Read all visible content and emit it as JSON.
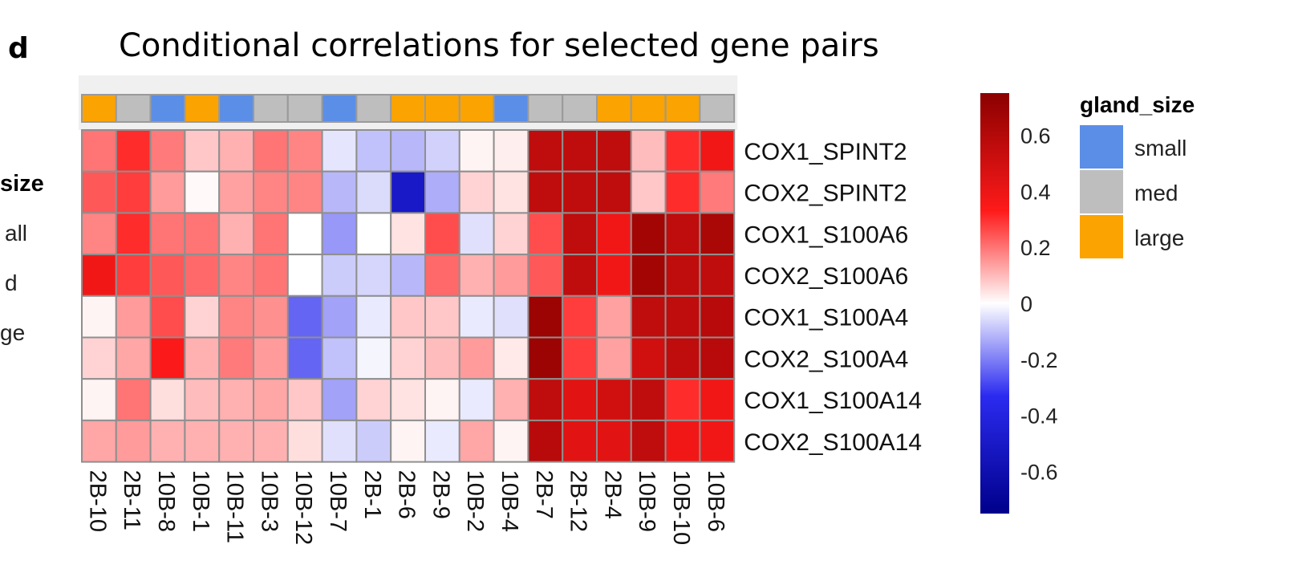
{
  "panel_label": "d",
  "chart_data": {
    "type": "heatmap",
    "title": "Conditional correlations for selected gene pairs",
    "columns": [
      "2B-10",
      "2B-11",
      "10B-8",
      "10B-1",
      "10B-11",
      "10B-3",
      "10B-12",
      "10B-7",
      "2B-1",
      "2B-6",
      "2B-9",
      "10B-2",
      "10B-4",
      "2B-7",
      "2B-12",
      "2B-4",
      "10B-9",
      "10B-10",
      "10B-6"
    ],
    "rows": [
      "COX1_SPINT2",
      "COX2_SPINT2",
      "COX1_S100A6",
      "COX2_S100A6",
      "COX1_S100A4",
      "COX2_S100A4",
      "COX1_S100A14",
      "COX2_S100A14"
    ],
    "values": [
      [
        0.25,
        0.38,
        0.24,
        0.1,
        0.14,
        0.25,
        0.22,
        -0.05,
        -0.12,
        -0.14,
        -0.09,
        0.02,
        0.03,
        0.6,
        0.6,
        0.6,
        0.12,
        0.38,
        0.45
      ],
      [
        0.3,
        0.35,
        0.18,
        0.01,
        0.17,
        0.22,
        0.22,
        -0.14,
        -0.07,
        -0.55,
        -0.16,
        0.08,
        0.05,
        0.6,
        0.6,
        0.6,
        0.1,
        0.38,
        0.24
      ],
      [
        0.22,
        0.38,
        0.25,
        0.25,
        0.14,
        0.25,
        0.0,
        -0.2,
        0.0,
        0.05,
        0.32,
        -0.06,
        0.08,
        0.32,
        0.6,
        0.45,
        0.68,
        0.6,
        0.66
      ],
      [
        0.45,
        0.35,
        0.3,
        0.27,
        0.22,
        0.25,
        0.0,
        -0.1,
        -0.08,
        -0.14,
        0.27,
        0.14,
        0.18,
        0.3,
        0.6,
        0.45,
        0.68,
        0.6,
        0.6
      ],
      [
        0.02,
        0.18,
        0.32,
        0.08,
        0.22,
        0.2,
        -0.3,
        -0.18,
        -0.04,
        0.1,
        0.1,
        -0.04,
        -0.06,
        0.7,
        0.35,
        0.17,
        0.6,
        0.6,
        0.62
      ],
      [
        0.08,
        0.16,
        0.42,
        0.14,
        0.24,
        0.18,
        -0.3,
        -0.12,
        -0.02,
        0.08,
        0.12,
        0.18,
        0.04,
        0.7,
        0.35,
        0.17,
        0.55,
        0.6,
        0.62
      ],
      [
        0.02,
        0.25,
        0.06,
        0.12,
        0.14,
        0.16,
        0.1,
        -0.18,
        0.08,
        0.05,
        0.02,
        -0.04,
        0.14,
        0.6,
        0.5,
        0.55,
        0.6,
        0.38,
        0.45
      ],
      [
        0.16,
        0.18,
        0.14,
        0.14,
        0.14,
        0.14,
        0.06,
        -0.06,
        -0.1,
        0.02,
        -0.04,
        0.16,
        0.02,
        0.62,
        0.5,
        0.5,
        0.6,
        0.45,
        0.45
      ]
    ],
    "column_annotation": {
      "name": "gland_size",
      "values": [
        "large",
        "med",
        "small",
        "large",
        "small",
        "med",
        "med",
        "small",
        "med",
        "large",
        "large",
        "large",
        "small",
        "med",
        "med",
        "large",
        "large",
        "large",
        "med"
      ]
    },
    "legend": {
      "title": "gland_size",
      "items": [
        {
          "label": "small",
          "color": "#5b8ee6"
        },
        {
          "label": "med",
          "color": "#bebebe"
        },
        {
          "label": "large",
          "color": "#fba300"
        }
      ]
    },
    "colorbar": {
      "range": [
        -0.75,
        0.75
      ],
      "ticks": [
        0.6,
        0.4,
        0.2,
        0,
        -0.2,
        -0.4,
        -0.6
      ],
      "tick_labels": [
        "0.6",
        "0.4",
        "0.2",
        "0",
        "-0.2",
        "-0.4",
        "-0.6"
      ],
      "colors": {
        "low": "#00008b",
        "mid_low": "#2b2bf0",
        "mid": "#ffffff",
        "mid_high": "#ff1a1a",
        "high": "#8b0000"
      }
    },
    "cut_legend": {
      "title_fragment": "size",
      "items": [
        "all",
        "d",
        "ge"
      ]
    }
  }
}
